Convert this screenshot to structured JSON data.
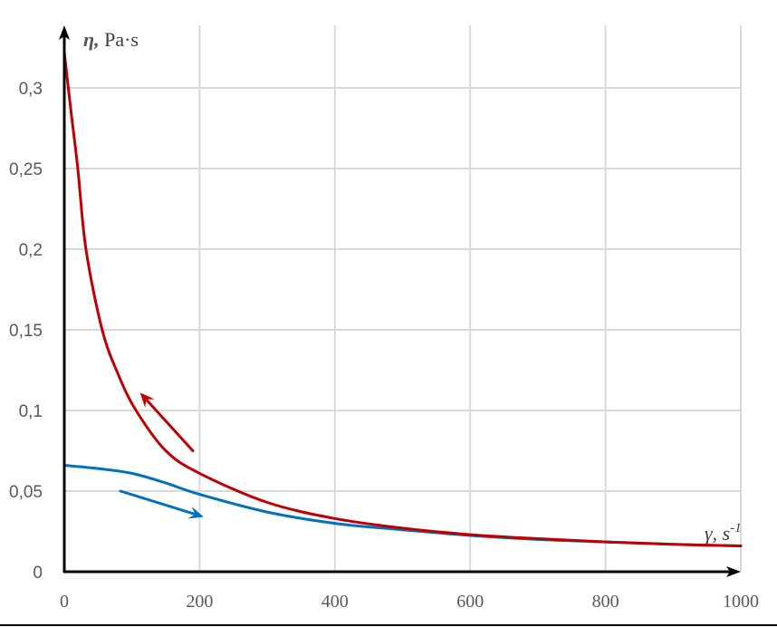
{
  "chart_data": {
    "type": "line",
    "title": "",
    "xlabel": "γ, s-1",
    "ylabel": "η, Pa·s",
    "xlim": [
      0,
      1000
    ],
    "ylim": [
      0,
      0.33
    ],
    "grid": true,
    "legend": null,
    "x_ticks": [
      "0",
      "200",
      "400",
      "600",
      "800",
      "1000"
    ],
    "y_ticks": [
      "0",
      "0,05",
      "0,1",
      "0,15",
      "0,2",
      "0,25",
      "0,3"
    ],
    "series": [
      {
        "name": "decreasing shear (red, arrow up-left)",
        "color": "#c00000",
        "x": [
          0,
          10,
          20,
          32,
          56,
          80,
          106,
          150,
          200,
          300,
          400,
          500,
          600,
          700,
          800,
          900,
          1000
        ],
        "values": [
          0.322,
          0.285,
          0.25,
          0.2,
          0.15,
          0.122,
          0.1,
          0.075,
          0.061,
          0.043,
          0.033,
          0.027,
          0.023,
          0.0205,
          0.0185,
          0.017,
          0.016
        ]
      },
      {
        "name": "increasing shear (blue, arrow down-right)",
        "color": "#0070c0",
        "x": [
          0,
          50,
          100,
          150,
          200,
          300,
          400,
          500,
          600,
          700,
          800,
          900,
          1000
        ],
        "values": [
          0.066,
          0.064,
          0.061,
          0.055,
          0.048,
          0.037,
          0.03,
          0.026,
          0.0225,
          0.02,
          0.0185,
          0.017,
          0.016
        ]
      }
    ],
    "annotations": [
      {
        "type": "arrow",
        "color": "#c00000",
        "from": [
          190,
          0.075
        ],
        "to": [
          112,
          0.111
        ]
      },
      {
        "type": "arrow",
        "color": "#0070c0",
        "from": [
          83,
          0.05
        ],
        "to": [
          206,
          0.034
        ]
      }
    ]
  },
  "labels": {
    "y_axis_symbol": "η,",
    "y_axis_unit": " Pa·s",
    "x_axis_symbol": "γ, s",
    "x_axis_exp": "-1"
  }
}
